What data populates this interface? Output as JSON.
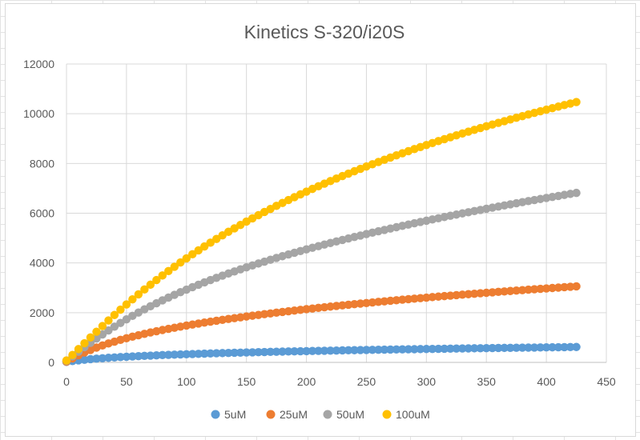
{
  "chart_data": {
    "type": "scatter",
    "title": "Kinetics S-320/i20S",
    "xlabel": "",
    "ylabel": "",
    "xlim": [
      0,
      450
    ],
    "ylim": [
      0,
      12000
    ],
    "x_ticks": [
      0,
      50,
      100,
      150,
      200,
      250,
      300,
      350,
      400,
      450
    ],
    "y_ticks": [
      0,
      2000,
      4000,
      6000,
      8000,
      10000,
      12000
    ],
    "grid": true,
    "legend_position": "bottom",
    "x": {
      "start": 0,
      "end": 425,
      "step": 5
    },
    "series": [
      {
        "name": "5uM",
        "color": "#5B9BD5",
        "values": [
          20,
          54,
          83,
          108,
          130,
          150,
          168,
          185,
          200,
          214,
          227,
          240,
          252,
          263,
          273,
          284,
          294,
          303,
          312,
          321,
          329,
          337,
          345,
          352,
          360,
          367,
          374,
          380,
          387,
          393,
          399,
          405,
          411,
          417,
          423,
          428,
          434,
          439,
          444,
          449,
          454,
          459,
          464,
          469,
          474,
          478,
          483,
          487,
          491,
          496,
          500,
          504,
          508,
          512,
          516,
          520,
          524,
          528,
          531,
          535,
          539,
          542,
          546,
          550,
          553,
          557,
          560,
          563,
          567,
          570,
          573,
          577,
          580,
          583,
          586,
          589,
          592,
          595,
          598,
          601,
          604,
          607,
          610,
          613,
          616,
          619
        ]
      },
      {
        "name": "25uM",
        "color": "#ED7D31",
        "values": [
          30,
          160,
          285,
          398,
          501,
          595,
          681,
          762,
          836,
          906,
          972,
          1034,
          1093,
          1149,
          1203,
          1254,
          1303,
          1350,
          1395,
          1439,
          1481,
          1522,
          1562,
          1601,
          1638,
          1675,
          1711,
          1746,
          1780,
          1813,
          1846,
          1878,
          1909,
          1940,
          1970,
          2000,
          2029,
          2057,
          2085,
          2113,
          2140,
          2166,
          2193,
          2218,
          2244,
          2269,
          2293,
          2318,
          2342,
          2365,
          2388,
          2411,
          2434,
          2456,
          2478,
          2500,
          2522,
          2543,
          2564,
          2585,
          2605,
          2626,
          2646,
          2666,
          2685,
          2705,
          2724,
          2743,
          2762,
          2781,
          2799,
          2817,
          2836,
          2854,
          2871,
          2889,
          2907,
          2924,
          2941,
          2958,
          2975,
          2992,
          3008,
          3025,
          3041,
          3057
        ]
      },
      {
        "name": "50uM",
        "color": "#A5A5A5",
        "values": [
          60,
          245,
          430,
          612,
          788,
          959,
          1125,
          1285,
          1439,
          1588,
          1732,
          1871,
          2005,
          2134,
          2259,
          2379,
          2496,
          2609,
          2718,
          2824,
          2927,
          3027,
          3124,
          3219,
          3311,
          3401,
          3489,
          3575,
          3659,
          3741,
          3821,
          3900,
          3977,
          4053,
          4127,
          4200,
          4271,
          4341,
          4410,
          4478,
          4545,
          4610,
          4675,
          4739,
          4802,
          4863,
          4924,
          4984,
          5044,
          5102,
          5160,
          5217,
          5273,
          5328,
          5383,
          5437,
          5490,
          5543,
          5595,
          5647,
          5698,
          5748,
          5798,
          5847,
          5896,
          5944,
          5992,
          6039,
          6086,
          6132,
          6178,
          6223,
          6268,
          6313,
          6357,
          6401,
          6444,
          6487,
          6529,
          6571,
          6613,
          6654,
          6695,
          6736,
          6776,
          6816
        ]
      },
      {
        "name": "100uM",
        "color": "#FFC000",
        "values": [
          80,
          300,
          535,
          770,
          1003,
          1234,
          1462,
          1686,
          1906,
          2121,
          2331,
          2537,
          2737,
          2933,
          3125,
          3312,
          3495,
          3673,
          3848,
          4018,
          4185,
          4348,
          4507,
          4663,
          4815,
          4964,
          5110,
          5252,
          5392,
          5529,
          5663,
          5794,
          5923,
          6049,
          6172,
          6294,
          6413,
          6530,
          6645,
          6758,
          6868,
          6977,
          7084,
          7189,
          7292,
          7394,
          7494,
          7592,
          7689,
          7784,
          7878,
          7970,
          8061,
          8151,
          8239,
          8326,
          8411,
          8496,
          8579,
          8661,
          8742,
          8822,
          8900,
          8978,
          9055,
          9130,
          9205,
          9279,
          9352,
          9424,
          9495,
          9565,
          9634,
          9703,
          9771,
          9838,
          9904,
          9970,
          10035,
          10099,
          10162,
          10225,
          10287,
          10349,
          10410,
          10470
        ]
      }
    ]
  }
}
